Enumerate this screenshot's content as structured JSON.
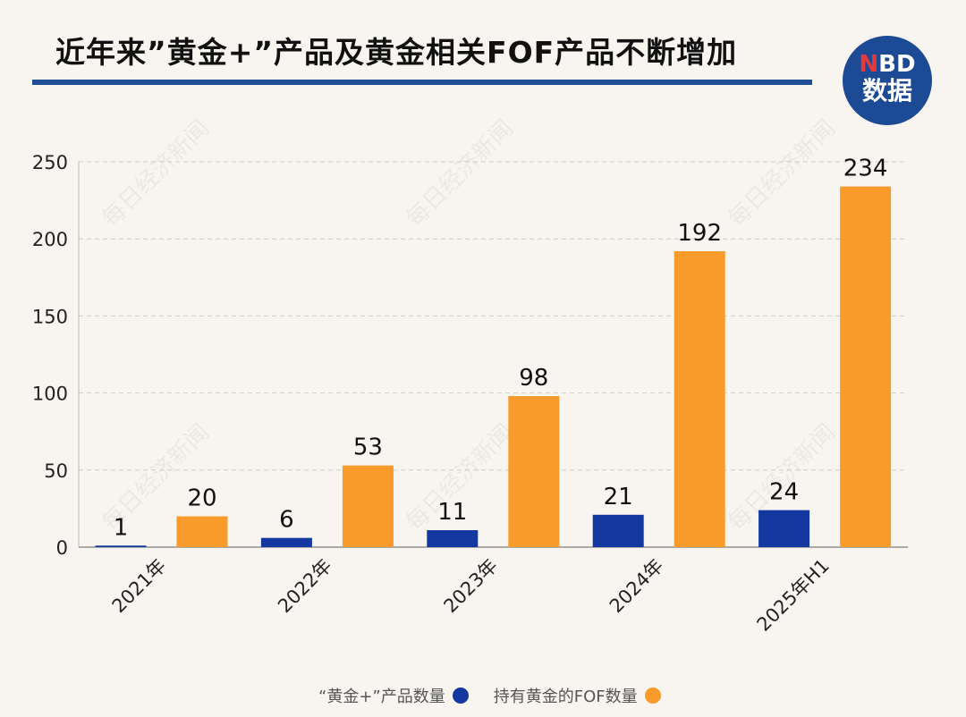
{
  "title": "近年来”黄金+”产品及黄金相关FOF产品不断增加",
  "logo": {
    "line1_accent": "N",
    "line1_rest": "BD",
    "line2": "数据"
  },
  "watermark": "每日经济新闻",
  "colors": {
    "blue": "#1538a0",
    "orange": "#f99b2b",
    "rule": "#1f4e96"
  },
  "chart_data": {
    "type": "bar",
    "title": "近年来”黄金+”产品及黄金相关FOF产品不断增加",
    "categories": [
      "2021年",
      "2022年",
      "2023年",
      "2024年",
      "2025年H1"
    ],
    "series": [
      {
        "name": "“黄金+”产品数量",
        "color": "#1538a0",
        "values": [
          1,
          6,
          11,
          21,
          24
        ]
      },
      {
        "name": "持有黄金的FOF数量",
        "color": "#f99b2b",
        "values": [
          20,
          53,
          98,
          192,
          234
        ]
      }
    ],
    "ylim": [
      0,
      250
    ],
    "yticks": [
      0,
      50,
      100,
      150,
      200,
      250
    ],
    "grid": true,
    "legend": "bottom"
  }
}
